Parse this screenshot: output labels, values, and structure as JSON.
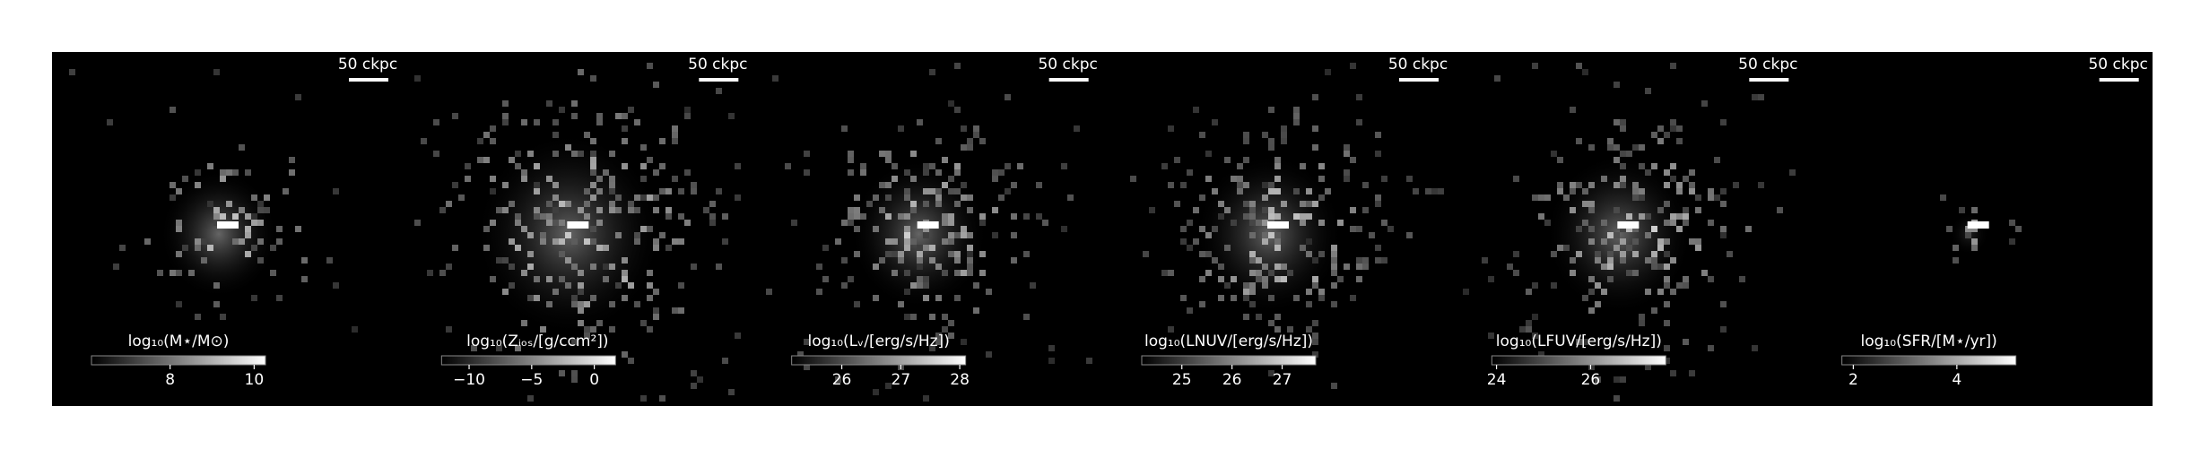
{
  "chart_data": [
    {
      "type": "image",
      "scale_bar_label": "50 ckpc",
      "colorbar_label": "log₁₀(M⋆/M⊙)",
      "clim": [
        6.13,
        10.27
      ],
      "cticks": [
        8,
        10
      ]
    },
    {
      "type": "image",
      "scale_bar_label": "50 ckpc",
      "colorbar_label": "log₁₀(Zᵢₒₛ/[g/ccm²])",
      "clim": [
        -12.2,
        1.7
      ],
      "cticks": [
        {
          "value": -10,
          "label": "−10"
        },
        {
          "value": -5,
          "label": "−5"
        },
        0
      ]
    },
    {
      "type": "image",
      "scale_bar_label": "50 ckpc",
      "colorbar_label": "log₁₀(Lᵥ/[erg/s/Hz])",
      "clim": [
        25.15,
        28.1
      ],
      "cticks": [
        26,
        27,
        28
      ]
    },
    {
      "type": "image",
      "scale_bar_label": "50 ckpc",
      "colorbar_label": "log₁₀(LNUV/[erg/s/Hz])",
      "clim": [
        24.2,
        27.67
      ],
      "cticks": [
        25,
        26,
        27
      ]
    },
    {
      "type": "image",
      "scale_bar_label": "50 ckpc",
      "colorbar_label": "log₁₀(LFUV/[erg/s/Hz])",
      "clim": [
        23.9,
        27.6
      ],
      "cticks": [
        24,
        26
      ]
    },
    {
      "type": "image",
      "scale_bar_label": "50 ckpc",
      "colorbar_label": "log₁₀(SFR/[M⋆/yr])",
      "clim": [
        1.78,
        5.14
      ],
      "cticks": [
        2,
        4
      ]
    }
  ]
}
